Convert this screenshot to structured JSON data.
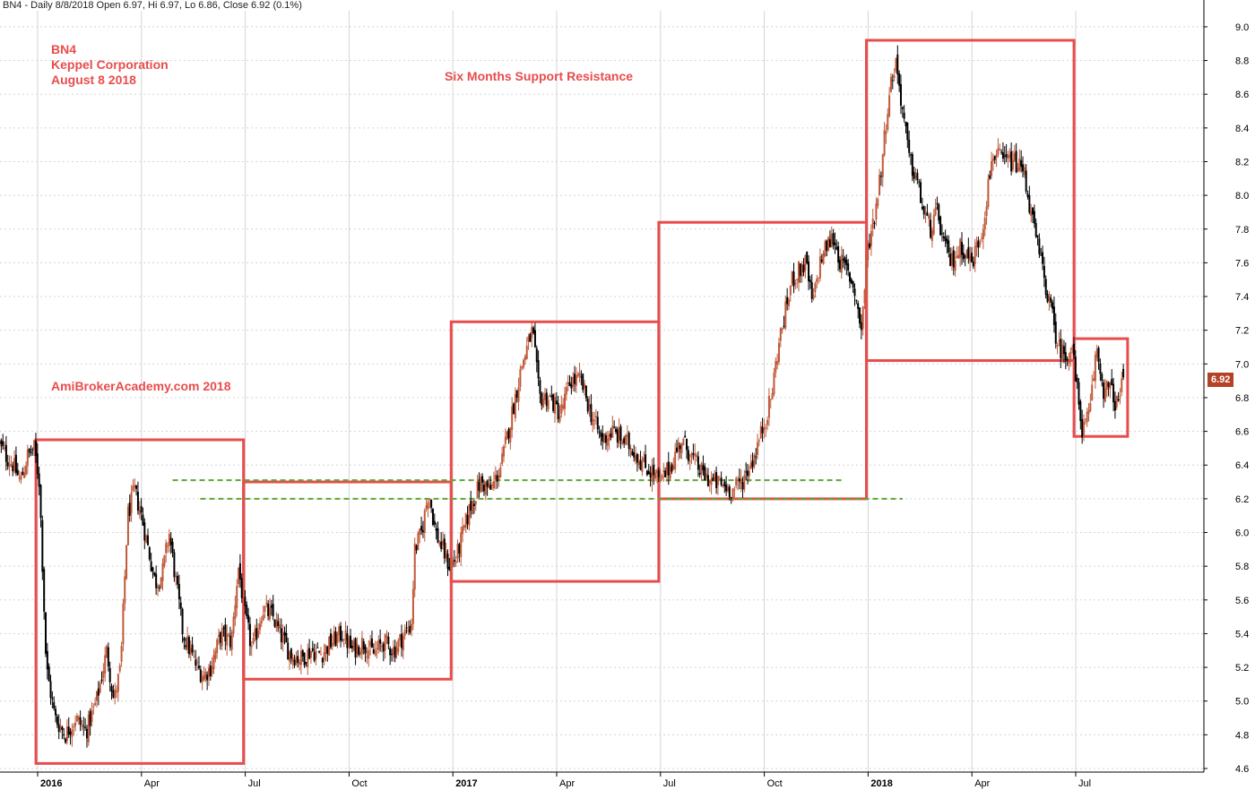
{
  "header": {
    "text": "BN4 - Daily 8/8/2018 Open 6.97, Hi 6.97, Lo 6.86, Close 6.92 (0.1%)"
  },
  "annotations": {
    "ticker": "BN4",
    "company": "Keppel Corporation",
    "date": "August 8 2018",
    "title": "Six Months Support Resistance",
    "watermark": "AmiBrokerAcademy.com  2018"
  },
  "last_price_label": "6.92",
  "colors": {
    "box": "#e84c4c",
    "support": "#5aa832",
    "up": "#c0593a",
    "down": "#000000",
    "grid": "#d5d5d5",
    "price_tag": "#b34227"
  },
  "chart_data": {
    "type": "candlestick",
    "symbol": "BN4",
    "interval": "Daily",
    "last_bar": {
      "date": "8/8/2018",
      "open": 6.97,
      "high": 6.97,
      "low": 6.86,
      "close": 6.92,
      "change": "0.1%"
    },
    "ylim": [
      4.6,
      9.0
    ],
    "y_ticks": [
      "4.6",
      "4.8",
      "5.0",
      "5.2",
      "5.4",
      "5.6",
      "5.8",
      "6.0",
      "6.2",
      "6.4",
      "6.6",
      "6.8",
      "7.0",
      "7.2",
      "7.4",
      "7.6",
      "7.8",
      "8.0",
      "8.2",
      "8.4",
      "8.6",
      "8.8",
      "9.0"
    ],
    "x_ticks": [
      {
        "label": "2016",
        "t": 0,
        "bold": true
      },
      {
        "label": "Apr",
        "t": 3,
        "bold": false
      },
      {
        "label": "Jul",
        "t": 6,
        "bold": false
      },
      {
        "label": "Oct",
        "t": 9,
        "bold": false
      },
      {
        "label": "2017",
        "t": 12,
        "bold": true
      },
      {
        "label": "Apr",
        "t": 15,
        "bold": false
      },
      {
        "label": "Jul",
        "t": 18,
        "bold": false
      },
      {
        "label": "Oct",
        "t": 21,
        "bold": false
      },
      {
        "label": "2018",
        "t": 24,
        "bold": true
      },
      {
        "label": "Apr",
        "t": 27,
        "bold": false
      },
      {
        "label": "Jul",
        "t": 30,
        "bold": false
      }
    ],
    "x_range_months": [
      -1.1,
      32.6
    ],
    "price_path": [
      [
        -1.1,
        6.52
      ],
      [
        -0.9,
        6.45
      ],
      [
        -0.7,
        6.4
      ],
      [
        -0.5,
        6.3
      ],
      [
        -0.3,
        6.45
      ],
      [
        -0.1,
        6.5
      ],
      [
        0.05,
        6.3
      ],
      [
        0.25,
        5.2
      ],
      [
        0.5,
        4.9
      ],
      [
        0.8,
        4.8
      ],
      [
        1.1,
        4.9
      ],
      [
        1.4,
        4.82
      ],
      [
        1.7,
        5.0
      ],
      [
        2.0,
        5.3
      ],
      [
        2.2,
        5.0
      ],
      [
        2.4,
        5.2
      ],
      [
        2.6,
        6.1
      ],
      [
        2.8,
        6.25
      ],
      [
        3.0,
        6.1
      ],
      [
        3.2,
        5.9
      ],
      [
        3.4,
        5.7
      ],
      [
        3.6,
        5.75
      ],
      [
        3.8,
        6.0
      ],
      [
        4.0,
        5.7
      ],
      [
        4.2,
        5.4
      ],
      [
        4.4,
        5.3
      ],
      [
        4.6,
        5.2
      ],
      [
        4.8,
        5.15
      ],
      [
        5.0,
        5.2
      ],
      [
        5.3,
        5.4
      ],
      [
        5.6,
        5.35
      ],
      [
        5.8,
        5.8
      ],
      [
        6.0,
        5.5
      ],
      [
        6.2,
        5.3
      ],
      [
        6.5,
        5.55
      ],
      [
        6.8,
        5.5
      ],
      [
        7.0,
        5.4
      ],
      [
        7.3,
        5.28
      ],
      [
        7.6,
        5.25
      ],
      [
        7.9,
        5.3
      ],
      [
        8.2,
        5.28
      ],
      [
        8.5,
        5.35
      ],
      [
        8.8,
        5.4
      ],
      [
        9.1,
        5.3
      ],
      [
        9.4,
        5.35
      ],
      [
        9.7,
        5.28
      ],
      [
        10.0,
        5.35
      ],
      [
        10.3,
        5.3
      ],
      [
        10.6,
        5.4
      ],
      [
        10.8,
        5.45
      ],
      [
        10.9,
        5.9
      ],
      [
        11.1,
        6.0
      ],
      [
        11.3,
        6.25
      ],
      [
        11.5,
        6.0
      ],
      [
        11.7,
        5.9
      ],
      [
        11.9,
        5.8
      ],
      [
        12.1,
        5.85
      ],
      [
        12.3,
        6.0
      ],
      [
        12.5,
        6.15
      ],
      [
        12.8,
        6.3
      ],
      [
        13.1,
        6.25
      ],
      [
        13.4,
        6.4
      ],
      [
        13.7,
        6.7
      ],
      [
        14.0,
        7.0
      ],
      [
        14.3,
        7.2
      ],
      [
        14.5,
        6.8
      ],
      [
        14.8,
        6.8
      ],
      [
        15.1,
        6.7
      ],
      [
        15.4,
        6.9
      ],
      [
        15.7,
        6.9
      ],
      [
        16.0,
        6.7
      ],
      [
        16.3,
        6.55
      ],
      [
        16.6,
        6.6
      ],
      [
        16.9,
        6.55
      ],
      [
        17.2,
        6.5
      ],
      [
        17.5,
        6.4
      ],
      [
        17.8,
        6.35
      ],
      [
        18.0,
        6.3
      ],
      [
        18.3,
        6.4
      ],
      [
        18.6,
        6.55
      ],
      [
        18.9,
        6.45
      ],
      [
        19.2,
        6.35
      ],
      [
        19.5,
        6.3
      ],
      [
        19.8,
        6.28
      ],
      [
        20.1,
        6.25
      ],
      [
        20.4,
        6.32
      ],
      [
        20.7,
        6.45
      ],
      [
        21.0,
        6.65
      ],
      [
        21.2,
        6.8
      ],
      [
        21.4,
        7.1
      ],
      [
        21.6,
        7.3
      ],
      [
        21.8,
        7.5
      ],
      [
        22.0,
        7.55
      ],
      [
        22.2,
        7.6
      ],
      [
        22.4,
        7.35
      ],
      [
        22.6,
        7.6
      ],
      [
        22.8,
        7.7
      ],
      [
        23.0,
        7.75
      ],
      [
        23.2,
        7.6
      ],
      [
        23.4,
        7.55
      ],
      [
        23.6,
        7.45
      ],
      [
        23.8,
        7.2
      ],
      [
        24.0,
        7.7
      ],
      [
        24.2,
        7.9
      ],
      [
        24.4,
        8.2
      ],
      [
        24.6,
        8.6
      ],
      [
        24.8,
        8.8
      ],
      [
        25.0,
        8.5
      ],
      [
        25.2,
        8.2
      ],
      [
        25.4,
        8.1
      ],
      [
        25.6,
        7.9
      ],
      [
        25.8,
        7.8
      ],
      [
        26.0,
        7.9
      ],
      [
        26.2,
        7.7
      ],
      [
        26.4,
        7.6
      ],
      [
        26.7,
        7.7
      ],
      [
        27.0,
        7.6
      ],
      [
        27.3,
        7.8
      ],
      [
        27.6,
        8.25
      ],
      [
        27.9,
        8.2
      ],
      [
        28.2,
        8.2
      ],
      [
        28.5,
        8.15
      ],
      [
        28.7,
        7.9
      ],
      [
        28.9,
        7.7
      ],
      [
        29.1,
        7.5
      ],
      [
        29.3,
        7.3
      ],
      [
        29.5,
        7.1
      ],
      [
        29.7,
        7.05
      ],
      [
        29.9,
        7.1
      ],
      [
        30.0,
        6.9
      ],
      [
        30.2,
        6.6
      ],
      [
        30.4,
        6.7
      ],
      [
        30.6,
        7.1
      ],
      [
        30.8,
        6.85
      ],
      [
        31.0,
        6.85
      ],
      [
        31.2,
        6.75
      ],
      [
        31.4,
        6.92
      ]
    ],
    "support_resistance_boxes": [
      {
        "t0": -0.05,
        "t1": 5.95,
        "top": 6.55,
        "bottom": 4.63
      },
      {
        "t0": 5.95,
        "t1": 11.95,
        "top": 6.3,
        "bottom": 5.13
      },
      {
        "t0": 11.95,
        "t1": 17.95,
        "top": 7.25,
        "bottom": 5.71
      },
      {
        "t0": 17.95,
        "t1": 23.95,
        "top": 7.84,
        "bottom": 6.2
      },
      {
        "t0": 23.95,
        "t1": 29.95,
        "top": 8.92,
        "bottom": 7.02
      },
      {
        "t0": 29.95,
        "t1": 31.5,
        "top": 7.15,
        "bottom": 6.57
      }
    ],
    "support_lines": [
      {
        "t0": 3.9,
        "t1": 23.3,
        "value": 6.31
      },
      {
        "t0": 4.7,
        "t1": 25.0,
        "value": 6.2
      }
    ],
    "grid": true,
    "y_axis_position": "right"
  }
}
